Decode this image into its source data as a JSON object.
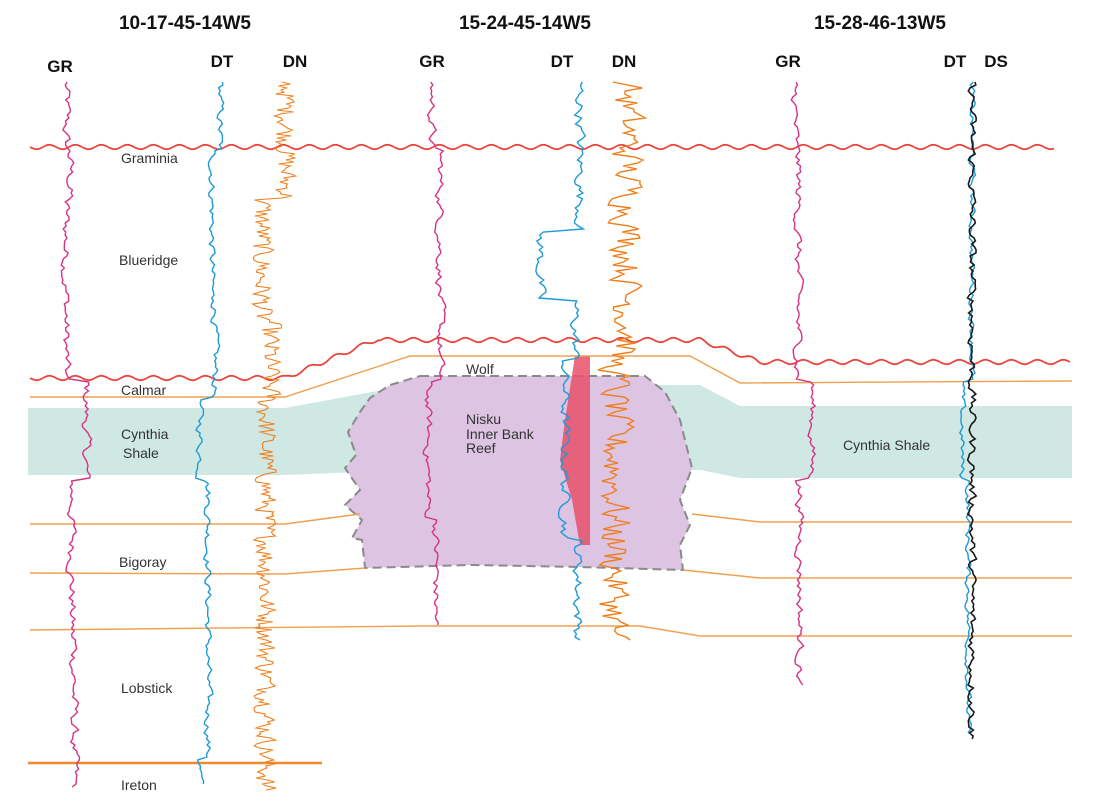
{
  "wells": [
    {
      "name": "10-17-45-14W5",
      "tracks": [
        "GR",
        "DT",
        "DN"
      ]
    },
    {
      "name": "15-24-45-14W5",
      "tracks": [
        "GR",
        "DT",
        "DN"
      ]
    },
    {
      "name": "15-28-46-13W5",
      "tracks": [
        "GR",
        "DT",
        "DS"
      ]
    }
  ],
  "formations": {
    "graminia": "Graminia",
    "blueridge": "Blueridge",
    "calmar": "Calmar",
    "cynthia_shale_line1": "Cynthia",
    "cynthia_shale_line2": "Shale",
    "bigoray": "Bigoray",
    "lobstick": "Lobstick",
    "ireton": "Ireton",
    "wolf": "Wolf",
    "cynthia_shale_right": "Cynthia Shale"
  },
  "reef": {
    "line1": "Nisku",
    "line2": "Inner Bank",
    "line3": "Reef"
  },
  "colors": {
    "gamma_ray": "#d63384",
    "sonic": "#1e9ad6",
    "density": "#f07d1a",
    "density_right": "#1a1a1a",
    "unconformity": "#e8453c",
    "horizon": "#f0a050",
    "cynthia_band": "#cfe8e4",
    "reef_fill": "#dcc4e2",
    "reef_outline": "#8a8a8a",
    "reef_core": "#e8506a"
  }
}
